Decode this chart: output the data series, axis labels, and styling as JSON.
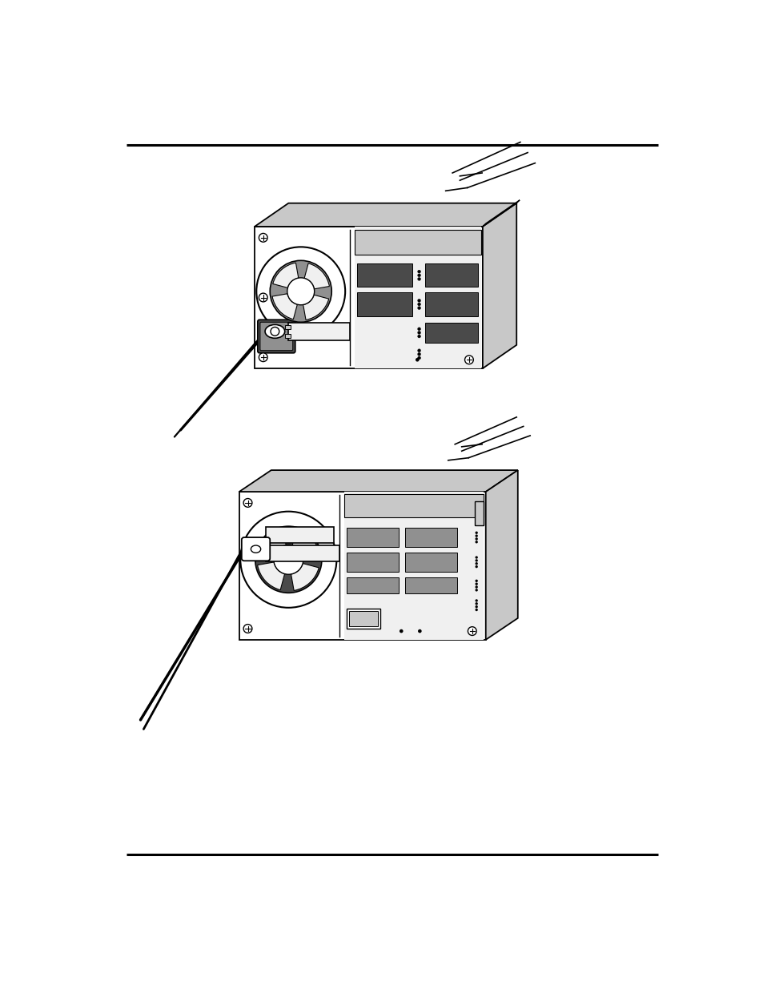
{
  "background_color": "#ffffff",
  "line_color": "#000000",
  "border_color": "#000000",
  "fig_width": 9.54,
  "fig_height": 12.35,
  "light_gray": "#c8c8c8",
  "mid_gray": "#909090",
  "dark_gray": "#4a4a4a",
  "very_light": "#f0f0f0",
  "white": "#ffffff"
}
